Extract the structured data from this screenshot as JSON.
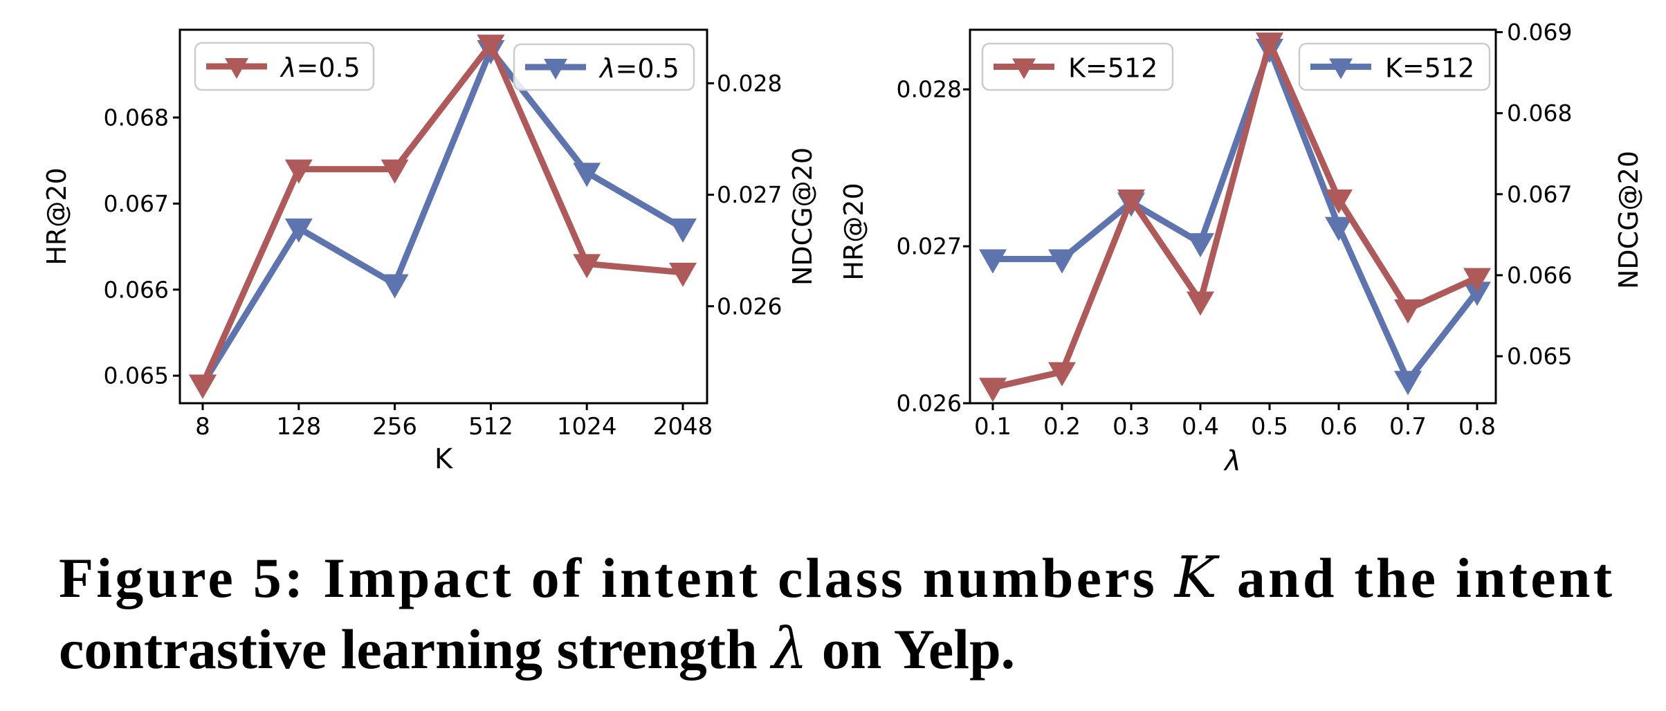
{
  "caption": {
    "line1_pre": "Figure 5: Impact of intent class numbers ",
    "k_symbol": "K",
    "line1_post": " and the intent",
    "line2_pre": "contrastive learning strength ",
    "lambda_symbol": "λ",
    "line2_post": " on Yelp."
  },
  "colors": {
    "hr_line": "#AE5A5A",
    "ndcg_line": "#5E74AE",
    "legend_border": "#cccccc",
    "axis": "#000000"
  },
  "chart_data": [
    {
      "type": "line",
      "title": "",
      "xlabel": "K",
      "xlabel_italic": false,
      "x_categories": [
        "8",
        "128",
        "256",
        "512",
        "1024",
        "2048"
      ],
      "legend_position": "upper left / upper right, two boxes",
      "grid": false,
      "left_axis": {
        "label": "HR@20",
        "range": [
          0.06468,
          0.06902
        ],
        "ticks": [
          {
            "value": 0.065,
            "label": "0.065"
          },
          {
            "value": 0.066,
            "label": "0.066"
          },
          {
            "value": 0.067,
            "label": "0.067"
          },
          {
            "value": 0.068,
            "label": "0.068"
          }
        ]
      },
      "right_axis": {
        "label": "NDCG@20",
        "range": [
          0.02513,
          0.02848
        ],
        "ticks": [
          {
            "value": 0.026,
            "label": "0.026"
          },
          {
            "value": 0.027,
            "label": "0.027"
          },
          {
            "value": 0.028,
            "label": "0.028"
          }
        ]
      },
      "series": [
        {
          "metric": "HR@20",
          "axis": "left",
          "color": "#AE5A5A",
          "marker": "triangle-down",
          "label_parts": [
            {
              "text": "λ",
              "italic": true
            },
            {
              "text": "=0.5",
              "italic": false
            }
          ],
          "values": [
            0.0649,
            0.0674,
            0.0674,
            0.06885,
            0.0663,
            0.0662
          ]
        },
        {
          "metric": "NDCG@20",
          "axis": "right",
          "color": "#5E74AE",
          "marker": "triangle-down",
          "label_parts": [
            {
              "text": "λ",
              "italic": true
            },
            {
              "text": "=0.5",
              "italic": false
            }
          ],
          "values": [
            0.0253,
            0.0267,
            0.0262,
            0.0283,
            0.0272,
            0.0267
          ]
        }
      ]
    },
    {
      "type": "line",
      "title": "",
      "xlabel": "λ",
      "xlabel_italic": true,
      "x_categories": [
        "0.1",
        "0.2",
        "0.3",
        "0.4",
        "0.5",
        "0.6",
        "0.7",
        "0.8"
      ],
      "legend_position": "upper left / upper right, two boxes",
      "grid": false,
      "left_axis": {
        "label": "HR@20",
        "range": [
          0.026,
          0.02838
        ],
        "ticks": [
          {
            "value": 0.026,
            "label": "0.026"
          },
          {
            "value": 0.027,
            "label": "0.027"
          },
          {
            "value": 0.028,
            "label": "0.028"
          }
        ]
      },
      "right_axis": {
        "label": "NDCG@20",
        "range": [
          0.06442,
          0.06903
        ],
        "ticks": [
          {
            "value": 0.065,
            "label": "0.065"
          },
          {
            "value": 0.066,
            "label": "0.066"
          },
          {
            "value": 0.067,
            "label": "0.067"
          },
          {
            "value": 0.068,
            "label": "0.068"
          },
          {
            "value": 0.069,
            "label": "0.069"
          }
        ]
      },
      "series": [
        {
          "metric": "HR@20",
          "axis": "left",
          "color": "#AE5A5A",
          "marker": "triangle-down",
          "label_parts": [
            {
              "text": "K=512",
              "italic": false
            }
          ],
          "values": [
            0.0261,
            0.0262,
            0.0273,
            0.02665,
            0.0283,
            0.0273,
            0.0266,
            0.0268
          ]
        },
        {
          "metric": "NDCG@20",
          "axis": "right",
          "color": "#5E74AE",
          "marker": "triangle-down",
          "label_parts": [
            {
              "text": "K=512",
              "italic": false
            }
          ],
          "values": [
            0.0662,
            0.0662,
            0.0669,
            0.0664,
            0.0688,
            0.0666,
            0.0647,
            0.0658
          ]
        }
      ]
    }
  ]
}
